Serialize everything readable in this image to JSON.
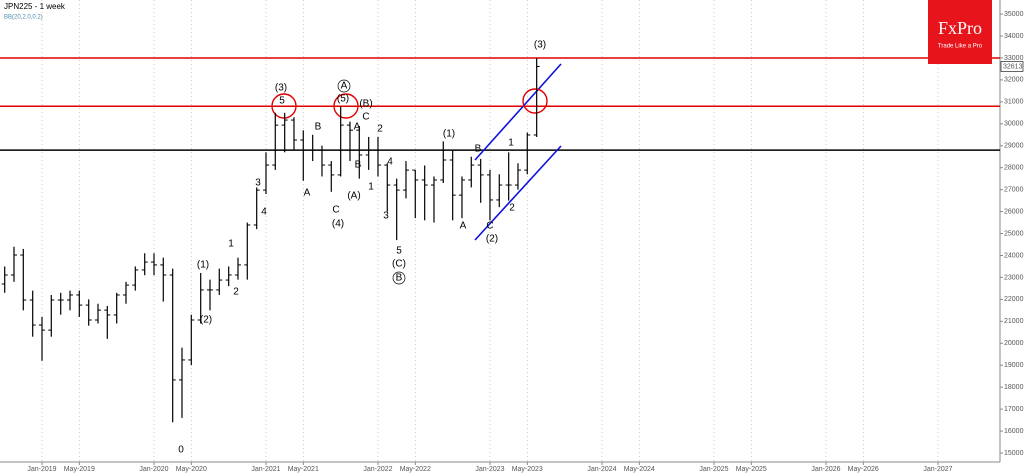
{
  "chart_data": {
    "type": "ohlc",
    "title": "JPN225 - 1 week",
    "subtitle": "BB(20,2.0,0.2)",
    "brand": "FxPro",
    "tagline": "Trade Like a Pro",
    "last_price": 32613,
    "x": [
      2018.667,
      2018.75,
      2018.833,
      2018.917,
      2019,
      2019.083,
      2019.167,
      2019.25,
      2019.333,
      2019.417,
      2019.5,
      2019.583,
      2019.667,
      2019.75,
      2019.833,
      2019.917,
      2020,
      2020.083,
      2020.167,
      2020.25,
      2020.333,
      2020.417,
      2020.5,
      2020.583,
      2020.667,
      2020.75,
      2020.833,
      2020.917,
      2021,
      2021.083,
      2021.167,
      2021.25,
      2021.333,
      2021.417,
      2021.5,
      2021.583,
      2021.667,
      2021.75,
      2021.833,
      2021.917,
      2022,
      2022.083,
      2022.167,
      2022.25,
      2022.333,
      2022.417,
      2022.5,
      2022.583,
      2022.667,
      2022.75,
      2022.833,
      2022.917,
      2023,
      2023.083,
      2023.167,
      2023.25,
      2023.333,
      2023.417
    ],
    "open": [
      22700,
      23110,
      24020,
      21970,
      20830,
      20600,
      21970,
      21970,
      22200,
      21740,
      21060,
      21510,
      21290,
      22200,
      22650,
      23340,
      23700,
      23570,
      23110,
      18330,
      19240,
      21060,
      22430,
      22430,
      22880,
      23110,
      23570,
      25390,
      26980,
      28120,
      29940,
      30170,
      29260,
      28800,
      28800,
      28120,
      27670,
      29940,
      29710,
      28580,
      28800,
      28120,
      27210,
      26980,
      27890,
      27440,
      27210,
      27440,
      28350,
      26750,
      27440,
      28120,
      27670,
      26530,
      27210,
      27210,
      27890,
      29490
    ],
    "high": [
      23500,
      24400,
      24300,
      22400,
      21200,
      22200,
      22300,
      22400,
      22400,
      22000,
      21800,
      21700,
      22300,
      22800,
      23500,
      24100,
      24100,
      23900,
      23400,
      19800,
      21300,
      23200,
      22900,
      23400,
      23500,
      23900,
      25500,
      27100,
      28700,
      30500,
      30500,
      30300,
      29700,
      29500,
      29000,
      28300,
      30800,
      30100,
      29900,
      29400,
      29400,
      28200,
      27500,
      28300,
      27900,
      28100,
      27600,
      29200,
      28800,
      27600,
      28500,
      28400,
      27900,
      27700,
      28700,
      28200,
      29600,
      33000
    ],
    "low": [
      22300,
      22800,
      21500,
      20300,
      19200,
      20300,
      21300,
      21500,
      21200,
      20800,
      20900,
      20200,
      20900,
      21800,
      22400,
      23100,
      23100,
      21900,
      16400,
      16600,
      19000,
      20900,
      21500,
      22200,
      22600,
      22900,
      22900,
      25200,
      26800,
      27900,
      28700,
      28800,
      27400,
      28300,
      27600,
      26900,
      27600,
      28300,
      27500,
      27900,
      27600,
      26000,
      24700,
      26600,
      25700,
      25600,
      25500,
      27300,
      25600,
      25700,
      27100,
      26400,
      25600,
      26200,
      26500,
      27000,
      27700,
      29400
    ],
    "close": [
      23110,
      24020,
      21970,
      20830,
      20600,
      21970,
      21970,
      22200,
      21740,
      21060,
      21510,
      21290,
      22200,
      22650,
      23340,
      23700,
      23570,
      23110,
      18330,
      19240,
      21060,
      22430,
      22430,
      22880,
      23110,
      23570,
      25390,
      26980,
      28120,
      29940,
      30170,
      29260,
      28800,
      28800,
      28120,
      27670,
      29940,
      29710,
      28580,
      28800,
      28120,
      27210,
      26980,
      27890,
      27440,
      27210,
      27440,
      28350,
      26750,
      27440,
      28120,
      27670,
      26530,
      27210,
      27210,
      27890,
      29490,
      32613
    ],
    "color": "#000000",
    "xlim": [
      2018.625,
      2027.554
    ],
    "ylim": [
      14590,
      35640
    ],
    "xticks": [
      {
        "value": 2019,
        "label": "Jan-2019"
      },
      {
        "value": 2019.333,
        "label": "May-2019"
      },
      {
        "value": 2020,
        "label": "Jan-2020"
      },
      {
        "value": 2020.333,
        "label": "May-2020"
      },
      {
        "value": 2021,
        "label": "Jan-2021"
      },
      {
        "value": 2021.333,
        "label": "May-2021"
      },
      {
        "value": 2022,
        "label": "Jan-2022"
      },
      {
        "value": 2022.333,
        "label": "May-2022"
      },
      {
        "value": 2023,
        "label": "Jan-2023"
      },
      {
        "value": 2023.333,
        "label": "May-2023"
      },
      {
        "value": 2024,
        "label": "Jan-2024"
      },
      {
        "value": 2024.333,
        "label": "May-2024"
      },
      {
        "value": 2025,
        "label": "Jan-2025"
      },
      {
        "value": 2025.333,
        "label": "May-2025"
      },
      {
        "value": 2026,
        "label": "Jan-2026"
      },
      {
        "value": 2026.333,
        "label": "May-2026"
      },
      {
        "value": 2027,
        "label": "Jan-2027"
      }
    ],
    "yticks": [
      15000,
      16000,
      17000,
      18000,
      19000,
      20000,
      21000,
      22000,
      23000,
      24000,
      25000,
      26000,
      27000,
      28000,
      29000,
      30000,
      31000,
      32000,
      33000,
      34000,
      35000
    ],
    "grid": "x",
    "levels": [
      {
        "value": 33000,
        "color": "#e00000"
      },
      {
        "value": 30800,
        "color": "#e00000"
      },
      {
        "value": 28800,
        "color": "#000000"
      }
    ],
    "wave_labels": [
      "(3)",
      "5",
      "A",
      "(5)",
      "(B)",
      "B",
      "C",
      "2",
      "A",
      "3",
      "4",
      "A",
      "C",
      "(4)",
      "(A)",
      "B",
      "1",
      "4",
      "3",
      "5",
      "(C)",
      "B",
      "(1)",
      "B",
      "1",
      "2",
      "A",
      "C",
      "(2)",
      "(3)",
      "0",
      "(1)",
      "(2)",
      "1",
      "2"
    ]
  }
}
